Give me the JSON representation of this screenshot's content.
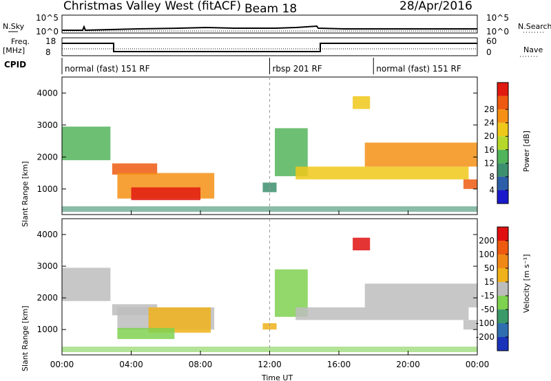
{
  "header": {
    "radar": "Christmas Valley West (fitACF)",
    "beam": "Beam 18",
    "date": "28/Apr/2016"
  },
  "top_panels": {
    "nsky_label": "N.Sky",
    "nsearch_label": "N.Search",
    "freq_label": "Freq.",
    "freq_unit": "[MHz]",
    "nave_label": "Nave",
    "cpid_label": "CPID",
    "left_ticks_noise": [
      "10^5",
      "10^0"
    ],
    "right_ticks_noise": [
      "10^5",
      "10^0"
    ],
    "left_ticks_freq": [
      "18",
      "8"
    ],
    "right_ticks_nave": [
      "60",
      "0"
    ]
  },
  "cpid_segments": [
    {
      "label": "normal (fast) 151 RF",
      "start_hour": 0
    },
    {
      "label": "rbsp 201 RF",
      "start_hour": 12
    },
    {
      "label": "normal (fast) 151 RF",
      "start_hour": 18
    }
  ],
  "chart_data": [
    {
      "type": "heatmap",
      "name": "power",
      "ylabel": "Slant Range [km]",
      "xlabel": "Time UT",
      "x_ticks": [
        "00:00",
        "04:00",
        "08:00",
        "12:00",
        "16:00",
        "20:00",
        "00:00"
      ],
      "y_ticks": [
        "1000",
        "2000",
        "3000",
        "4000"
      ],
      "ylim": [
        200,
        4500
      ],
      "xlim_hours": [
        0,
        24
      ],
      "colorbar": {
        "label": "Power [dB]",
        "ticks": [
          "4",
          "8",
          "12",
          "16",
          "20",
          "24",
          "28"
        ],
        "colors": [
          "#1a1acc",
          "#2d5fa8",
          "#3d8f6e",
          "#52b45a",
          "#b5d82a",
          "#f0c81a",
          "#f59015",
          "#ee5a10",
          "#e01a10"
        ]
      },
      "regions": [
        {
          "t0": 0.0,
          "t1": 2.8,
          "r0": 1900,
          "r1": 2950,
          "level": 3
        },
        {
          "t0": 2.9,
          "t1": 5.5,
          "r0": 1450,
          "r1": 1800,
          "level": 7
        },
        {
          "t0": 3.2,
          "t1": 8.8,
          "r0": 700,
          "r1": 1500,
          "level": 6
        },
        {
          "t0": 4.0,
          "t1": 8.0,
          "r0": 650,
          "r1": 1050,
          "level": 8
        },
        {
          "t0": 11.6,
          "t1": 12.4,
          "r0": 900,
          "r1": 1200,
          "level": 2
        },
        {
          "t0": 12.3,
          "t1": 14.2,
          "r0": 1400,
          "r1": 2900,
          "level": 3
        },
        {
          "t0": 13.5,
          "t1": 23.5,
          "r0": 1300,
          "r1": 1700,
          "level": 5
        },
        {
          "t0": 17.5,
          "t1": 24.0,
          "r0": 1700,
          "r1": 2450,
          "level": 6
        },
        {
          "t0": 16.8,
          "t1": 17.8,
          "r0": 3500,
          "r1": 3900,
          "level": 5
        },
        {
          "t0": 23.2,
          "t1": 24.0,
          "r0": 1000,
          "r1": 1300,
          "level": 7
        }
      ]
    },
    {
      "type": "heatmap",
      "name": "velocity",
      "ylabel": "Slant Range [km]",
      "xlabel": "Time UT",
      "x_ticks": [
        "00:00",
        "04:00",
        "08:00",
        "12:00",
        "16:00",
        "20:00",
        "00:00"
      ],
      "y_ticks": [
        "1000",
        "2000",
        "3000",
        "4000"
      ],
      "ylim": [
        200,
        4500
      ],
      "xlim_hours": [
        0,
        24
      ],
      "colorbar": {
        "label": "Velocity [m s⁻¹]",
        "ticks": [
          "200",
          "100",
          "50",
          "15",
          "-15",
          "-50",
          "-100",
          "-200"
        ],
        "colors": [
          "#1a33bb",
          "#2f6fb0",
          "#3c9a6a",
          "#7fd150",
          "#bdbdbd",
          "#f0b21a",
          "#f08818",
          "#ee5a10",
          "#e01010"
        ]
      },
      "regions": [
        {
          "t0": 0.0,
          "t1": 2.8,
          "r0": 1900,
          "r1": 2950,
          "level": 4
        },
        {
          "t0": 2.9,
          "t1": 5.5,
          "r0": 1450,
          "r1": 1800,
          "level": 4
        },
        {
          "t0": 3.2,
          "t1": 8.8,
          "r0": 1000,
          "r1": 1700,
          "level": 4
        },
        {
          "t0": 5.0,
          "t1": 8.6,
          "r0": 900,
          "r1": 1700,
          "level": 5
        },
        {
          "t0": 3.2,
          "t1": 6.5,
          "r0": 700,
          "r1": 1050,
          "level": 3
        },
        {
          "t0": 11.6,
          "t1": 12.4,
          "r0": 1000,
          "r1": 1200,
          "level": 5
        },
        {
          "t0": 12.3,
          "t1": 14.2,
          "r0": 1400,
          "r1": 2900,
          "level": 3
        },
        {
          "t0": 13.5,
          "t1": 23.5,
          "r0": 1300,
          "r1": 1700,
          "level": 4
        },
        {
          "t0": 17.5,
          "t1": 24.0,
          "r0": 1700,
          "r1": 2450,
          "level": 4
        },
        {
          "t0": 16.8,
          "t1": 17.8,
          "r0": 3500,
          "r1": 3900,
          "level": 8
        },
        {
          "t0": 23.2,
          "t1": 24.0,
          "r0": 1000,
          "r1": 1300,
          "level": 4
        }
      ]
    }
  ]
}
